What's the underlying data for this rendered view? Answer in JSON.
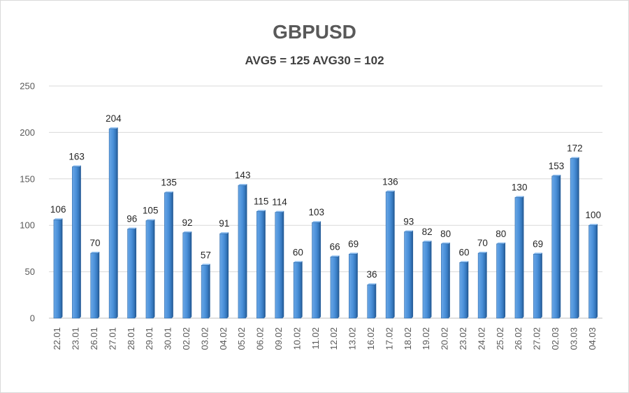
{
  "chart_data": {
    "type": "bar",
    "title": "GBPUSD",
    "subtitle": "AVG5 = 125 AVG30 = 102",
    "xlabel": "",
    "ylabel": "",
    "ylim": [
      0,
      250
    ],
    "yticks": [
      0,
      50,
      100,
      150,
      200,
      250
    ],
    "grid": true,
    "bar_color": "#4a90d9",
    "categories": [
      "22.01",
      "23.01",
      "26.01",
      "27.01",
      "28.01",
      "29.01",
      "30.01",
      "02.02",
      "03.02",
      "04.02",
      "05.02",
      "06.02",
      "09.02",
      "10.02",
      "11.02",
      "12.02",
      "13.02",
      "16.02",
      "17.02",
      "18.02",
      "19.02",
      "20.02",
      "23.02",
      "24.02",
      "25.02",
      "26.02",
      "27.02",
      "02.03",
      "03.03",
      "04.03"
    ],
    "values": [
      106,
      163,
      70,
      204,
      96,
      105,
      135,
      92,
      57,
      91,
      143,
      115,
      114,
      60,
      103,
      66,
      69,
      36,
      136,
      93,
      82,
      80,
      60,
      70,
      80,
      130,
      69,
      153,
      172,
      100
    ]
  }
}
